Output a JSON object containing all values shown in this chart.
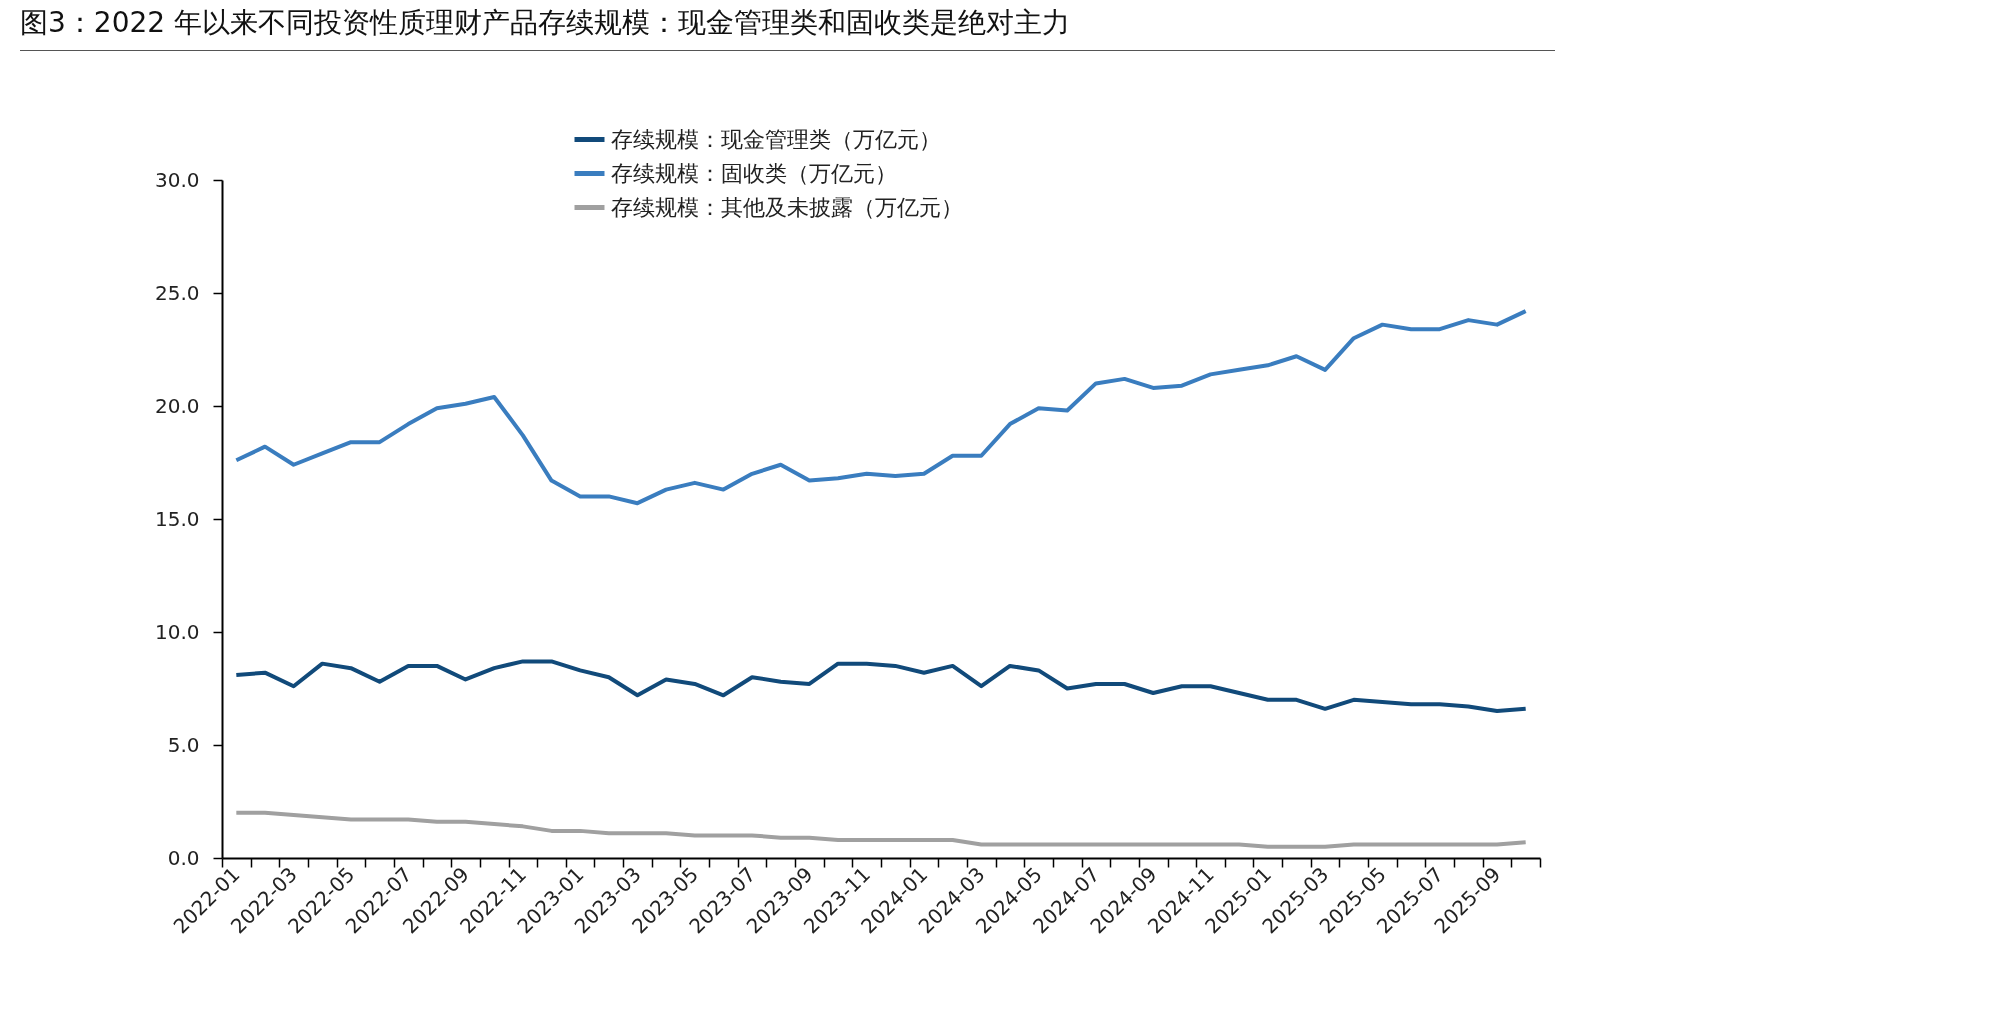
{
  "chart_data": {
    "type": "line",
    "title": "图3：2022 年以来不同投资性质理财产品存续规模：现金管理类和固收类是绝对主力",
    "categories": [
      "2022-01",
      null,
      "2022-03",
      null,
      "2022-05",
      null,
      "2022-07",
      null,
      "2022-09",
      null,
      "2022-11",
      null,
      "2023-01",
      null,
      "2023-03",
      null,
      "2023-05",
      null,
      "2023-07",
      null,
      "2023-09",
      null,
      "2023-11",
      null,
      "2024-01",
      null,
      "2024-03",
      null,
      "2024-05",
      null,
      "2024-07",
      null,
      "2024-09",
      null,
      "2024-11",
      null,
      "2025-01",
      null,
      "2025-03",
      null,
      "2025-05",
      null,
      "2025-07",
      null,
      "2025-09",
      null
    ],
    "series": [
      {
        "name": "存续规模：现金管理类（万亿元）",
        "color": "#114a7a",
        "values": [
          8.1,
          8.2,
          7.6,
          8.6,
          8.4,
          7.8,
          8.5,
          8.5,
          7.9,
          8.4,
          8.7,
          8.7,
          8.3,
          8.0,
          7.2,
          7.9,
          7.7,
          7.2,
          8.0,
          7.8,
          7.7,
          8.6,
          8.6,
          8.5,
          8.2,
          8.5,
          7.6,
          8.5,
          8.3,
          7.5,
          7.7,
          7.7,
          7.3,
          7.6,
          7.6,
          7.3,
          7.0,
          7.0,
          6.6,
          7.0,
          6.9,
          6.8,
          6.8,
          6.7,
          6.5,
          6.6
        ]
      },
      {
        "name": "存续规模：固收类（万亿元）",
        "color": "#3a7dbf",
        "values": [
          17.6,
          18.2,
          17.4,
          17.9,
          18.4,
          18.4,
          19.2,
          19.9,
          20.1,
          20.4,
          18.7,
          16.7,
          16.0,
          16.0,
          15.7,
          16.3,
          16.6,
          16.3,
          17.0,
          17.4,
          16.7,
          16.8,
          17.0,
          16.9,
          17.0,
          17.8,
          17.8,
          19.2,
          19.9,
          19.8,
          21.0,
          21.2,
          20.8,
          20.9,
          21.4,
          21.6,
          21.8,
          22.2,
          21.6,
          23.0,
          23.6,
          23.4,
          23.4,
          23.8,
          23.6,
          24.2
        ]
      },
      {
        "name": "存续规模：其他及未披露（万亿元）",
        "color": "#a0a0a0",
        "values": [
          2.0,
          2.0,
          1.9,
          1.8,
          1.7,
          1.7,
          1.7,
          1.6,
          1.6,
          1.5,
          1.4,
          1.2,
          1.2,
          1.1,
          1.1,
          1.1,
          1.0,
          1.0,
          1.0,
          0.9,
          0.9,
          0.8,
          0.8,
          0.8,
          0.8,
          0.8,
          0.6,
          0.6,
          0.6,
          0.6,
          0.6,
          0.6,
          0.6,
          0.6,
          0.6,
          0.6,
          0.5,
          0.5,
          0.5,
          0.6,
          0.6,
          0.6,
          0.6,
          0.6,
          0.6,
          0.7
        ]
      }
    ],
    "ylim": [
      0,
      30
    ],
    "yticks": [
      {
        "value": 0,
        "label": "0.0"
      },
      {
        "value": 5,
        "label": "5.0"
      },
      {
        "value": 10,
        "label": "10.0"
      },
      {
        "value": 15,
        "label": "15.0"
      },
      {
        "value": 20,
        "label": "20.0"
      },
      {
        "value": 25,
        "label": "25.0"
      },
      {
        "value": 30,
        "label": "30.0"
      }
    ],
    "grid": false,
    "legend": "top",
    "line_style": "solid",
    "marker": "none"
  }
}
